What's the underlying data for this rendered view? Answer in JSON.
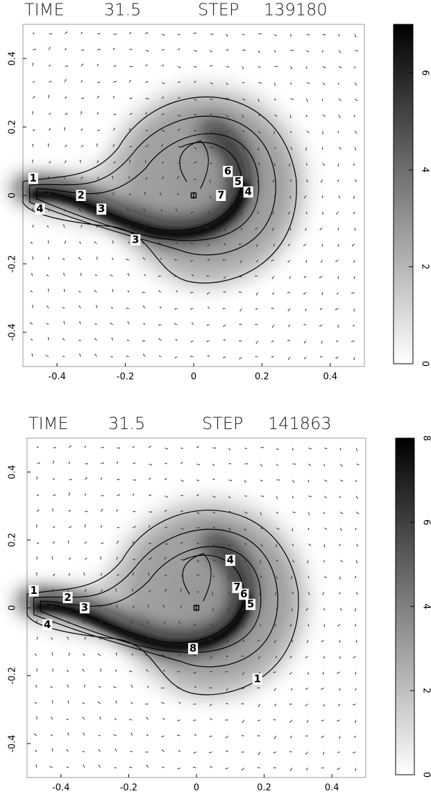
{
  "chart_data": [
    {
      "type": "contour",
      "time_label": "TIME",
      "time": 31.5,
      "step_label": "STEP",
      "step": 139180,
      "xlim": [
        -0.5,
        0.5
      ],
      "ylim": [
        -0.5,
        0.5
      ],
      "xticks": [
        -0.4,
        -0.2,
        0,
        0.2,
        0.4
      ],
      "yticks": [
        -0.4,
        -0.2,
        0,
        0.2,
        0.4
      ],
      "colorbar": {
        "lim": [
          0,
          7
        ],
        "ticks": [
          0,
          2,
          4,
          6
        ],
        "colors": [
          "#ffffff",
          "#000000"
        ]
      },
      "contour_labels": [
        {
          "x": -0.47,
          "y": 0.05,
          "value": 1
        },
        {
          "x": -0.33,
          "y": 0.0,
          "value": 2
        },
        {
          "x": -0.27,
          "y": -0.04,
          "value": 3
        },
        {
          "x": -0.45,
          "y": -0.04,
          "value": 4
        },
        {
          "x": -0.17,
          "y": -0.13,
          "value": 3
        },
        {
          "x": 0.1,
          "y": 0.07,
          "value": 6
        },
        {
          "x": 0.13,
          "y": 0.04,
          "value": 5
        },
        {
          "x": 0.16,
          "y": 0.01,
          "value": 4
        },
        {
          "x": 0.08,
          "y": 0.0,
          "value": 7
        }
      ]
    },
    {
      "type": "contour",
      "time_label": "TIME",
      "time": 31.5,
      "step_label": "STEP",
      "step": 141863,
      "xlim": [
        -0.5,
        0.5
      ],
      "ylim": [
        -0.5,
        0.5
      ],
      "xticks": [
        -0.4,
        -0.2,
        0,
        0.2,
        0.4
      ],
      "yticks": [
        -0.4,
        -0.2,
        0,
        0.2,
        0.4
      ],
      "colorbar": {
        "lim": [
          0,
          8
        ],
        "ticks": [
          0,
          2,
          4,
          6,
          8
        ],
        "colors": [
          "#ffffff",
          "#000000"
        ]
      },
      "contour_labels": [
        {
          "x": -0.48,
          "y": 0.05,
          "value": 1
        },
        {
          "x": -0.38,
          "y": 0.03,
          "value": 2
        },
        {
          "x": -0.33,
          "y": 0.0,
          "value": 3
        },
        {
          "x": -0.44,
          "y": -0.05,
          "value": 4
        },
        {
          "x": -0.01,
          "y": -0.12,
          "value": 8
        },
        {
          "x": 0.1,
          "y": 0.14,
          "value": 4
        },
        {
          "x": 0.12,
          "y": 0.06,
          "value": 7
        },
        {
          "x": 0.14,
          "y": 0.04,
          "value": 6
        },
        {
          "x": 0.16,
          "y": 0.01,
          "value": 5
        },
        {
          "x": 0.18,
          "y": -0.21,
          "value": 1
        }
      ]
    }
  ]
}
